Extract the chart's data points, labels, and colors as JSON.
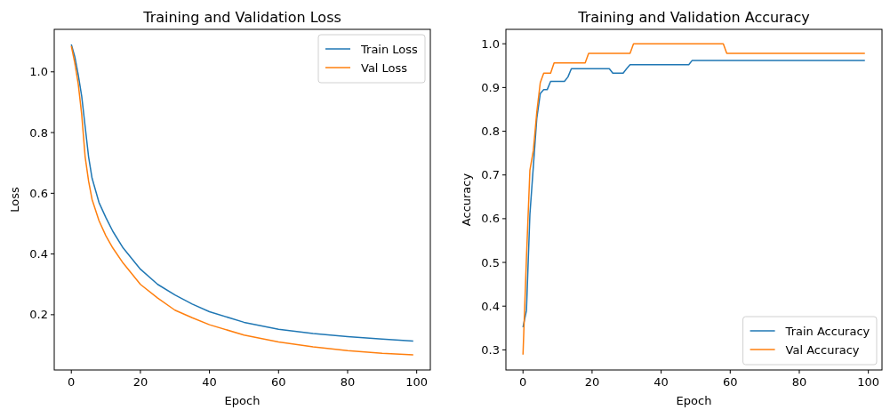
{
  "chart_data": [
    {
      "type": "line",
      "title": "Training and Validation Loss",
      "xlabel": "Epoch",
      "ylabel": "Loss",
      "xlim": [
        -4.95,
        103.95
      ],
      "ylim": [
        0.018,
        1.14
      ],
      "xticks": [
        0,
        20,
        40,
        60,
        80,
        100
      ],
      "yticks": [
        0.2,
        0.4,
        0.6,
        0.8,
        {
          "value": 1,
          "label": "1.0"
        }
      ],
      "grid": false,
      "legend": "top right",
      "series": [
        {
          "name": "Train Loss",
          "color": "#1f77b4",
          "x": [
            0,
            1,
            2,
            3,
            4,
            5,
            6,
            8,
            10,
            12,
            15,
            20,
            25,
            30,
            35,
            40,
            50,
            60,
            70,
            80,
            90,
            99
          ],
          "values": [
            1.09,
            1.05,
            0.99,
            0.92,
            0.82,
            0.72,
            0.65,
            0.57,
            0.52,
            0.475,
            0.42,
            0.35,
            0.3,
            0.265,
            0.235,
            0.21,
            0.175,
            0.152,
            0.138,
            0.128,
            0.12,
            0.113
          ]
        },
        {
          "name": "Val Loss",
          "color": "#ff7f0e",
          "x": [
            0,
            1,
            2,
            3,
            4,
            5,
            6,
            8,
            10,
            12,
            15,
            20,
            25,
            30,
            35,
            40,
            50,
            60,
            70,
            80,
            90,
            99
          ],
          "values": [
            1.085,
            1.03,
            0.96,
            0.86,
            0.72,
            0.64,
            0.58,
            0.51,
            0.46,
            0.42,
            0.37,
            0.3,
            0.255,
            0.215,
            0.19,
            0.167,
            0.133,
            0.11,
            0.094,
            0.082,
            0.073,
            0.068
          ]
        }
      ]
    },
    {
      "type": "line",
      "title": "Training and Validation Accuracy",
      "xlabel": "Epoch",
      "ylabel": "Accuracy",
      "xlim": [
        -4.95,
        103.95
      ],
      "ylim": [
        0.254,
        1.033
      ],
      "xticks": [
        0,
        20,
        40,
        60,
        80,
        100
      ],
      "yticks": [
        0.3,
        0.4,
        0.5,
        0.6,
        0.7,
        0.8,
        0.9,
        {
          "value": 1,
          "label": "1.0"
        }
      ],
      "grid": false,
      "legend": "bottom right",
      "series": [
        {
          "name": "Train Accuracy",
          "color": "#1f77b4",
          "x": [
            0,
            1,
            2,
            3,
            4,
            5,
            6,
            7,
            8,
            12,
            13,
            14,
            25,
            26,
            29,
            30,
            31,
            48,
            49,
            99
          ],
          "values": [
            0.352,
            0.39,
            0.61,
            0.72,
            0.83,
            0.886,
            0.895,
            0.895,
            0.914,
            0.914,
            0.924,
            0.943,
            0.943,
            0.933,
            0.933,
            0.943,
            0.952,
            0.952,
            0.962,
            0.962
          ]
        },
        {
          "name": "Val Accuracy",
          "color": "#ff7f0e",
          "x": [
            0,
            1,
            2,
            3,
            4,
            5,
            6,
            8,
            9,
            18,
            19,
            31,
            32,
            58,
            59,
            99
          ],
          "values": [
            0.289,
            0.511,
            0.711,
            0.756,
            0.844,
            0.911,
            0.933,
            0.933,
            0.956,
            0.956,
            0.978,
            0.978,
            1.0,
            1.0,
            0.978,
            0.978
          ]
        }
      ]
    }
  ]
}
